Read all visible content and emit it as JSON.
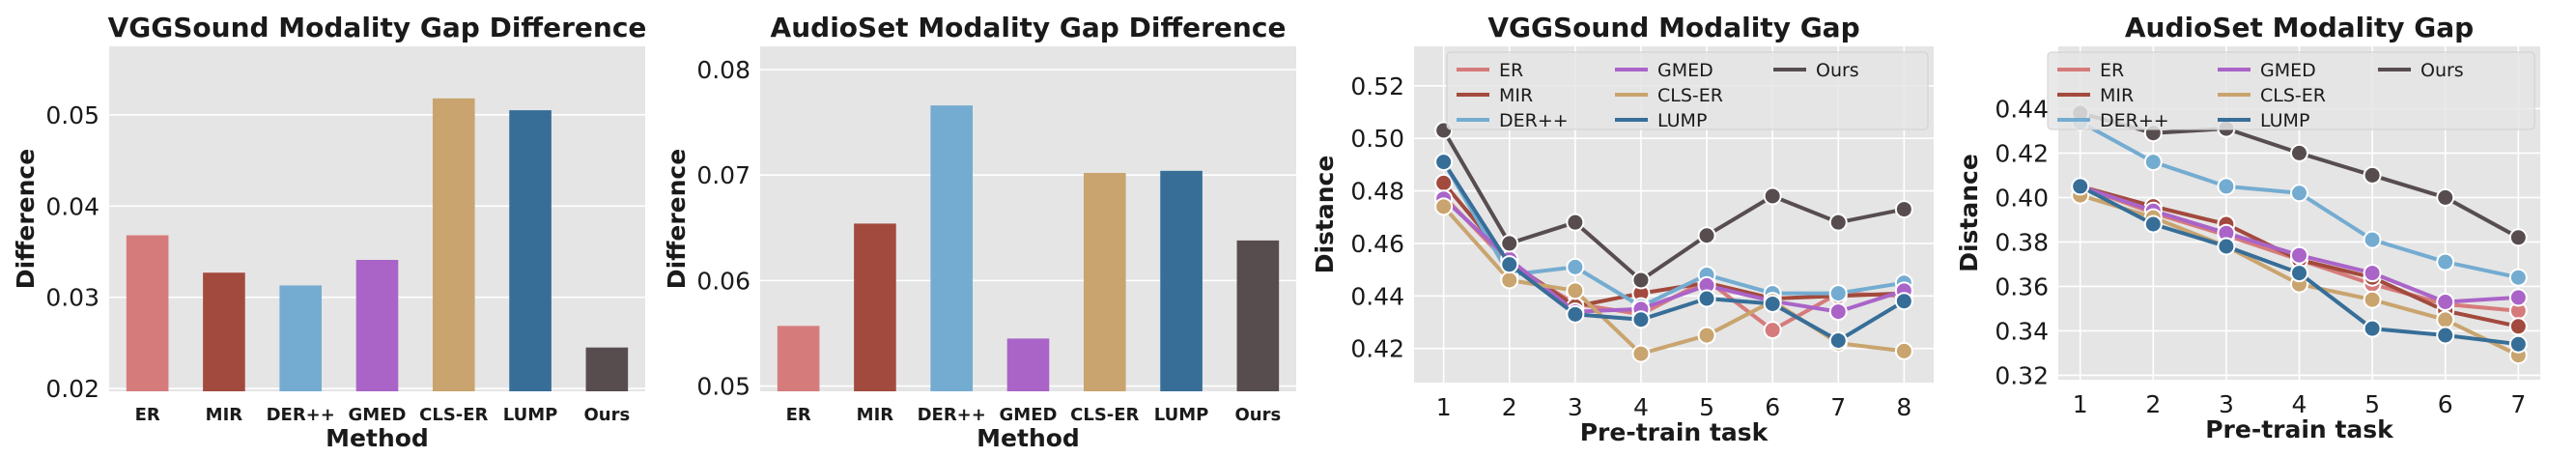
{
  "colors": {
    "ER": "#d67b7b",
    "MIR": "#a24a3d",
    "DER++": "#74acd1",
    "GMED": "#aa64c8",
    "CLS-ER": "#c9a46e",
    "LUMP": "#376e98",
    "Ours": "#574d4f"
  },
  "chart_data": [
    {
      "type": "bar",
      "title": "VGGSound Modality Gap Difference",
      "xlabel": "Method",
      "ylabel": "Difference",
      "categories": [
        "ER",
        "MIR",
        "DER++",
        "GMED",
        "CLS-ER",
        "LUMP",
        "Ours"
      ],
      "values": [
        0.0368,
        0.0327,
        0.0313,
        0.0341,
        0.0518,
        0.0505,
        0.0245
      ],
      "ylim": [
        0.0197,
        0.0575
      ],
      "yticks": [
        0.02,
        0.03,
        0.04,
        0.05
      ],
      "ytick_labels": [
        "0.02",
        "0.03",
        "0.04",
        "0.05"
      ],
      "grid": true
    },
    {
      "type": "bar",
      "title": "AudioSet Modality Gap Difference",
      "xlabel": "Method",
      "ylabel": "Difference",
      "categories": [
        "ER",
        "MIR",
        "DER++",
        "GMED",
        "CLS-ER",
        "LUMP",
        "Ours"
      ],
      "values": [
        0.0557,
        0.0654,
        0.0766,
        0.0545,
        0.0702,
        0.0704,
        0.0638
      ],
      "ylim": [
        0.0495,
        0.0822
      ],
      "yticks": [
        0.05,
        0.06,
        0.07,
        0.08
      ],
      "ytick_labels": [
        "0.05",
        "0.06",
        "0.07",
        "0.08"
      ],
      "grid": true
    },
    {
      "type": "line",
      "title": "VGGSound Modality Gap",
      "xlabel": "Pre-train task",
      "ylabel": "Distance",
      "x": [
        1,
        2,
        3,
        4,
        5,
        6,
        7,
        8
      ],
      "xlim": [
        0.55,
        8.45
      ],
      "ylim": [
        0.407,
        0.535
      ],
      "yticks": [
        0.42,
        0.44,
        0.46,
        0.48,
        0.5,
        0.52
      ],
      "ytick_labels": [
        "0.42",
        "0.44",
        "0.46",
        "0.48",
        "0.50",
        "0.52"
      ],
      "legend": "top-right",
      "grid": true,
      "series": [
        {
          "name": "ER",
          "values": [
            0.478,
            0.452,
            0.437,
            0.433,
            0.446,
            0.427,
            0.441,
            0.44
          ]
        },
        {
          "name": "MIR",
          "values": [
            0.483,
            0.453,
            0.436,
            0.441,
            0.445,
            0.439,
            0.44,
            0.441
          ]
        },
        {
          "name": "DER++",
          "values": [
            0.491,
            0.448,
            0.451,
            0.436,
            0.448,
            0.441,
            0.441,
            0.445
          ]
        },
        {
          "name": "GMED",
          "values": [
            0.477,
            0.454,
            0.434,
            0.435,
            0.444,
            0.438,
            0.434,
            0.442
          ]
        },
        {
          "name": "CLS-ER",
          "values": [
            0.474,
            0.446,
            0.442,
            0.418,
            0.425,
            0.438,
            0.422,
            0.419
          ]
        },
        {
          "name": "LUMP",
          "values": [
            0.491,
            0.452,
            0.433,
            0.431,
            0.439,
            0.437,
            0.423,
            0.438
          ]
        },
        {
          "name": "Ours",
          "values": [
            0.503,
            0.46,
            0.468,
            0.446,
            0.463,
            0.478,
            0.468,
            0.473
          ]
        }
      ]
    },
    {
      "type": "line",
      "title": "AudioSet Modality Gap",
      "xlabel": "Pre-train task",
      "ylabel": "Distance",
      "x": [
        1,
        2,
        3,
        4,
        5,
        6,
        7
      ],
      "xlim": [
        0.7,
        7.3
      ],
      "ylim": [
        0.318,
        0.468
      ],
      "yticks": [
        0.32,
        0.34,
        0.36,
        0.38,
        0.4,
        0.42,
        0.44
      ],
      "ytick_labels": [
        "0.32",
        "0.34",
        "0.36",
        "0.38",
        "0.40",
        "0.42",
        "0.44"
      ],
      "legend": "top-right",
      "grid": true,
      "series": [
        {
          "name": "ER",
          "values": [
            0.405,
            0.393,
            0.383,
            0.372,
            0.361,
            0.352,
            0.349
          ]
        },
        {
          "name": "MIR",
          "values": [
            0.405,
            0.396,
            0.388,
            0.372,
            0.364,
            0.349,
            0.342
          ]
        },
        {
          "name": "DER++",
          "values": [
            0.434,
            0.416,
            0.405,
            0.402,
            0.381,
            0.371,
            0.364
          ]
        },
        {
          "name": "GMED",
          "values": [
            0.405,
            0.394,
            0.384,
            0.374,
            0.366,
            0.353,
            0.355
          ]
        },
        {
          "name": "CLS-ER",
          "values": [
            0.401,
            0.391,
            0.378,
            0.361,
            0.354,
            0.345,
            0.329
          ]
        },
        {
          "name": "LUMP",
          "values": [
            0.405,
            0.388,
            0.378,
            0.366,
            0.341,
            0.338,
            0.334
          ]
        },
        {
          "name": "Ours",
          "values": [
            0.438,
            0.429,
            0.431,
            0.42,
            0.41,
            0.4,
            0.382
          ]
        }
      ]
    }
  ]
}
